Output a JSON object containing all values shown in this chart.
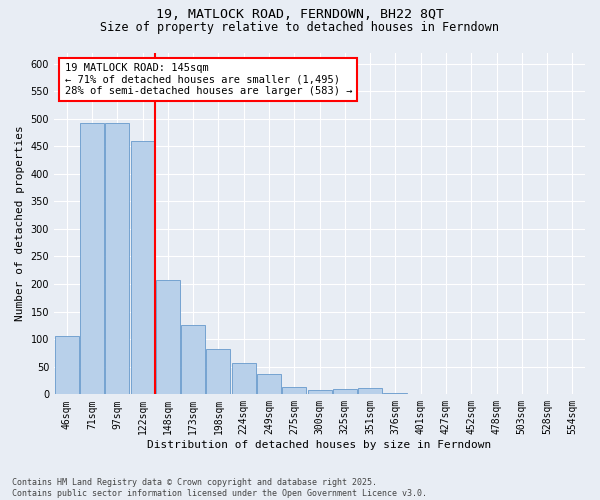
{
  "title": "19, MATLOCK ROAD, FERNDOWN, BH22 8QT",
  "subtitle": "Size of property relative to detached houses in Ferndown",
  "xlabel": "Distribution of detached houses by size in Ferndown",
  "ylabel": "Number of detached properties",
  "categories": [
    "46sqm",
    "71sqm",
    "97sqm",
    "122sqm",
    "148sqm",
    "173sqm",
    "198sqm",
    "224sqm",
    "249sqm",
    "275sqm",
    "300sqm",
    "325sqm",
    "351sqm",
    "376sqm",
    "401sqm",
    "427sqm",
    "452sqm",
    "478sqm",
    "503sqm",
    "528sqm",
    "554sqm"
  ],
  "values": [
    105,
    492,
    492,
    460,
    207,
    125,
    82,
    57,
    37,
    14,
    8,
    10,
    11,
    3,
    1,
    1,
    0,
    0,
    0,
    0,
    0
  ],
  "bar_color": "#b8d0ea",
  "bar_edge_color": "#6699cc",
  "vline_color": "red",
  "vline_bin_index": 4,
  "annotation_text": "19 MATLOCK ROAD: 145sqm\n← 71% of detached houses are smaller (1,495)\n28% of semi-detached houses are larger (583) →",
  "annotation_box_color": "white",
  "annotation_box_edge_color": "red",
  "ylim": [
    0,
    620
  ],
  "yticks": [
    0,
    50,
    100,
    150,
    200,
    250,
    300,
    350,
    400,
    450,
    500,
    550,
    600
  ],
  "background_color": "#e8edf4",
  "footer": "Contains HM Land Registry data © Crown copyright and database right 2025.\nContains public sector information licensed under the Open Government Licence v3.0.",
  "title_fontsize": 9.5,
  "subtitle_fontsize": 8.5,
  "xlabel_fontsize": 8,
  "ylabel_fontsize": 8,
  "tick_fontsize": 7,
  "annotation_fontsize": 7.5,
  "footer_fontsize": 6
}
